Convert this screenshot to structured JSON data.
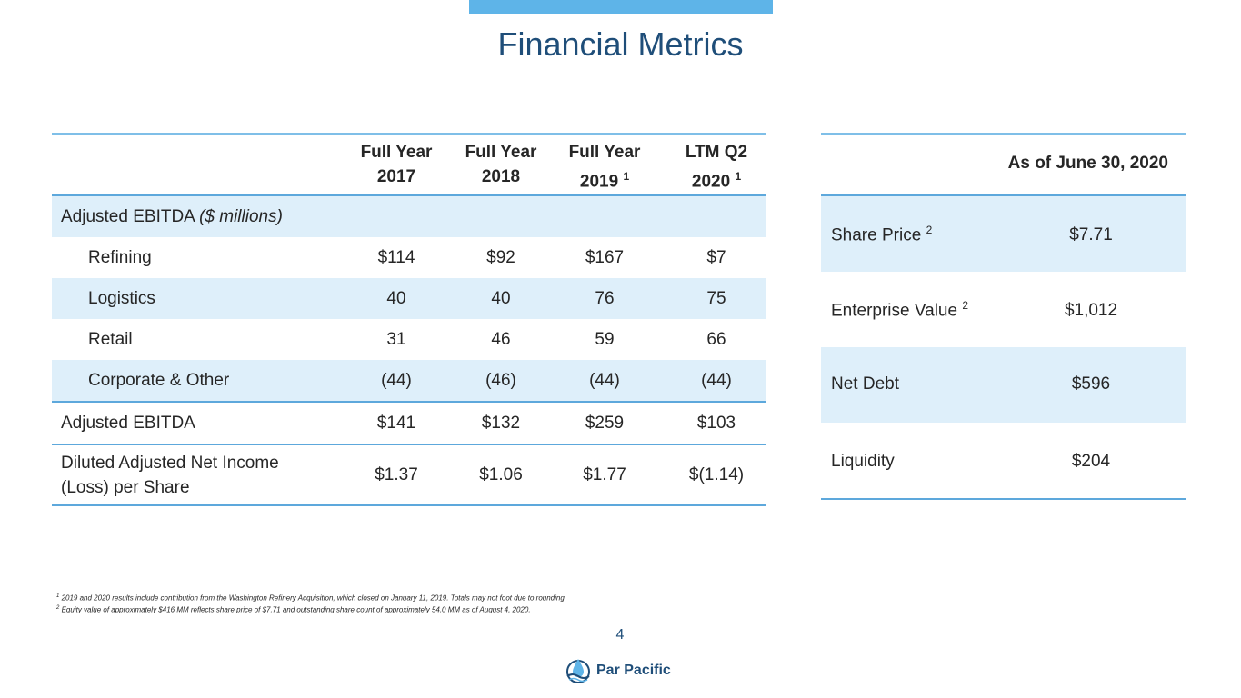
{
  "title": "Financial Metrics",
  "left_table": {
    "columns": [
      {
        "line1": "Full Year",
        "line2": "2017",
        "sup": ""
      },
      {
        "line1": "Full Year",
        "line2": "2018",
        "sup": ""
      },
      {
        "line1": "Full Year",
        "line2": "2019",
        "sup": "1"
      },
      {
        "line1": "LTM Q2",
        "line2": "2020",
        "sup": "1"
      }
    ],
    "section_label": "Adjusted EBITDA",
    "section_unit": "($ millions)",
    "rows": [
      {
        "label": "Refining",
        "values": [
          "$114",
          "$92",
          "$167",
          "$7"
        ]
      },
      {
        "label": "Logistics",
        "values": [
          "40",
          "40",
          "76",
          "75"
        ]
      },
      {
        "label": "Retail",
        "values": [
          "31",
          "46",
          "59",
          "66"
        ]
      },
      {
        "label": "Corporate & Other",
        "values": [
          "(44)",
          "(46)",
          "(44)",
          "(44)"
        ]
      }
    ],
    "total": {
      "label": "Adjusted EBITDA",
      "values": [
        "$141",
        "$132",
        "$259",
        "$103"
      ]
    },
    "eps": {
      "label_line1": "Diluted Adjusted Net Income",
      "label_line2": "(Loss) per Share",
      "values": [
        "$1.37",
        "$1.06",
        "$1.77",
        "$(1.14)"
      ]
    }
  },
  "right_table": {
    "header": "As of June 30, 2020",
    "rows": [
      {
        "label": "Share Price",
        "sup": "2",
        "value": "$7.71"
      },
      {
        "label": "Enterprise Value",
        "sup": "2",
        "value": "$1,012"
      },
      {
        "label": "Net Debt",
        "sup": "",
        "value": "$596"
      },
      {
        "label": "Liquidity",
        "sup": "",
        "value": "$204"
      }
    ]
  },
  "footnotes": [
    {
      "sup": "1",
      "text": "2019 and 2020 results include contribution from the Washington Refinery Acquisition, which closed on January 11, 2019. Totals may not foot due to rounding."
    },
    {
      "sup": "2",
      "text": "Equity value of approximately $416 MM reflects share price of $7.71 and outstanding share count of approximately 54.0 MM as of August 4, 2020."
    }
  ],
  "page_number": "4",
  "logo_text": "Par Pacific",
  "colors": {
    "accent": "#5eb4e8",
    "title": "#1f4e79",
    "row_shade": "#deeffa"
  }
}
